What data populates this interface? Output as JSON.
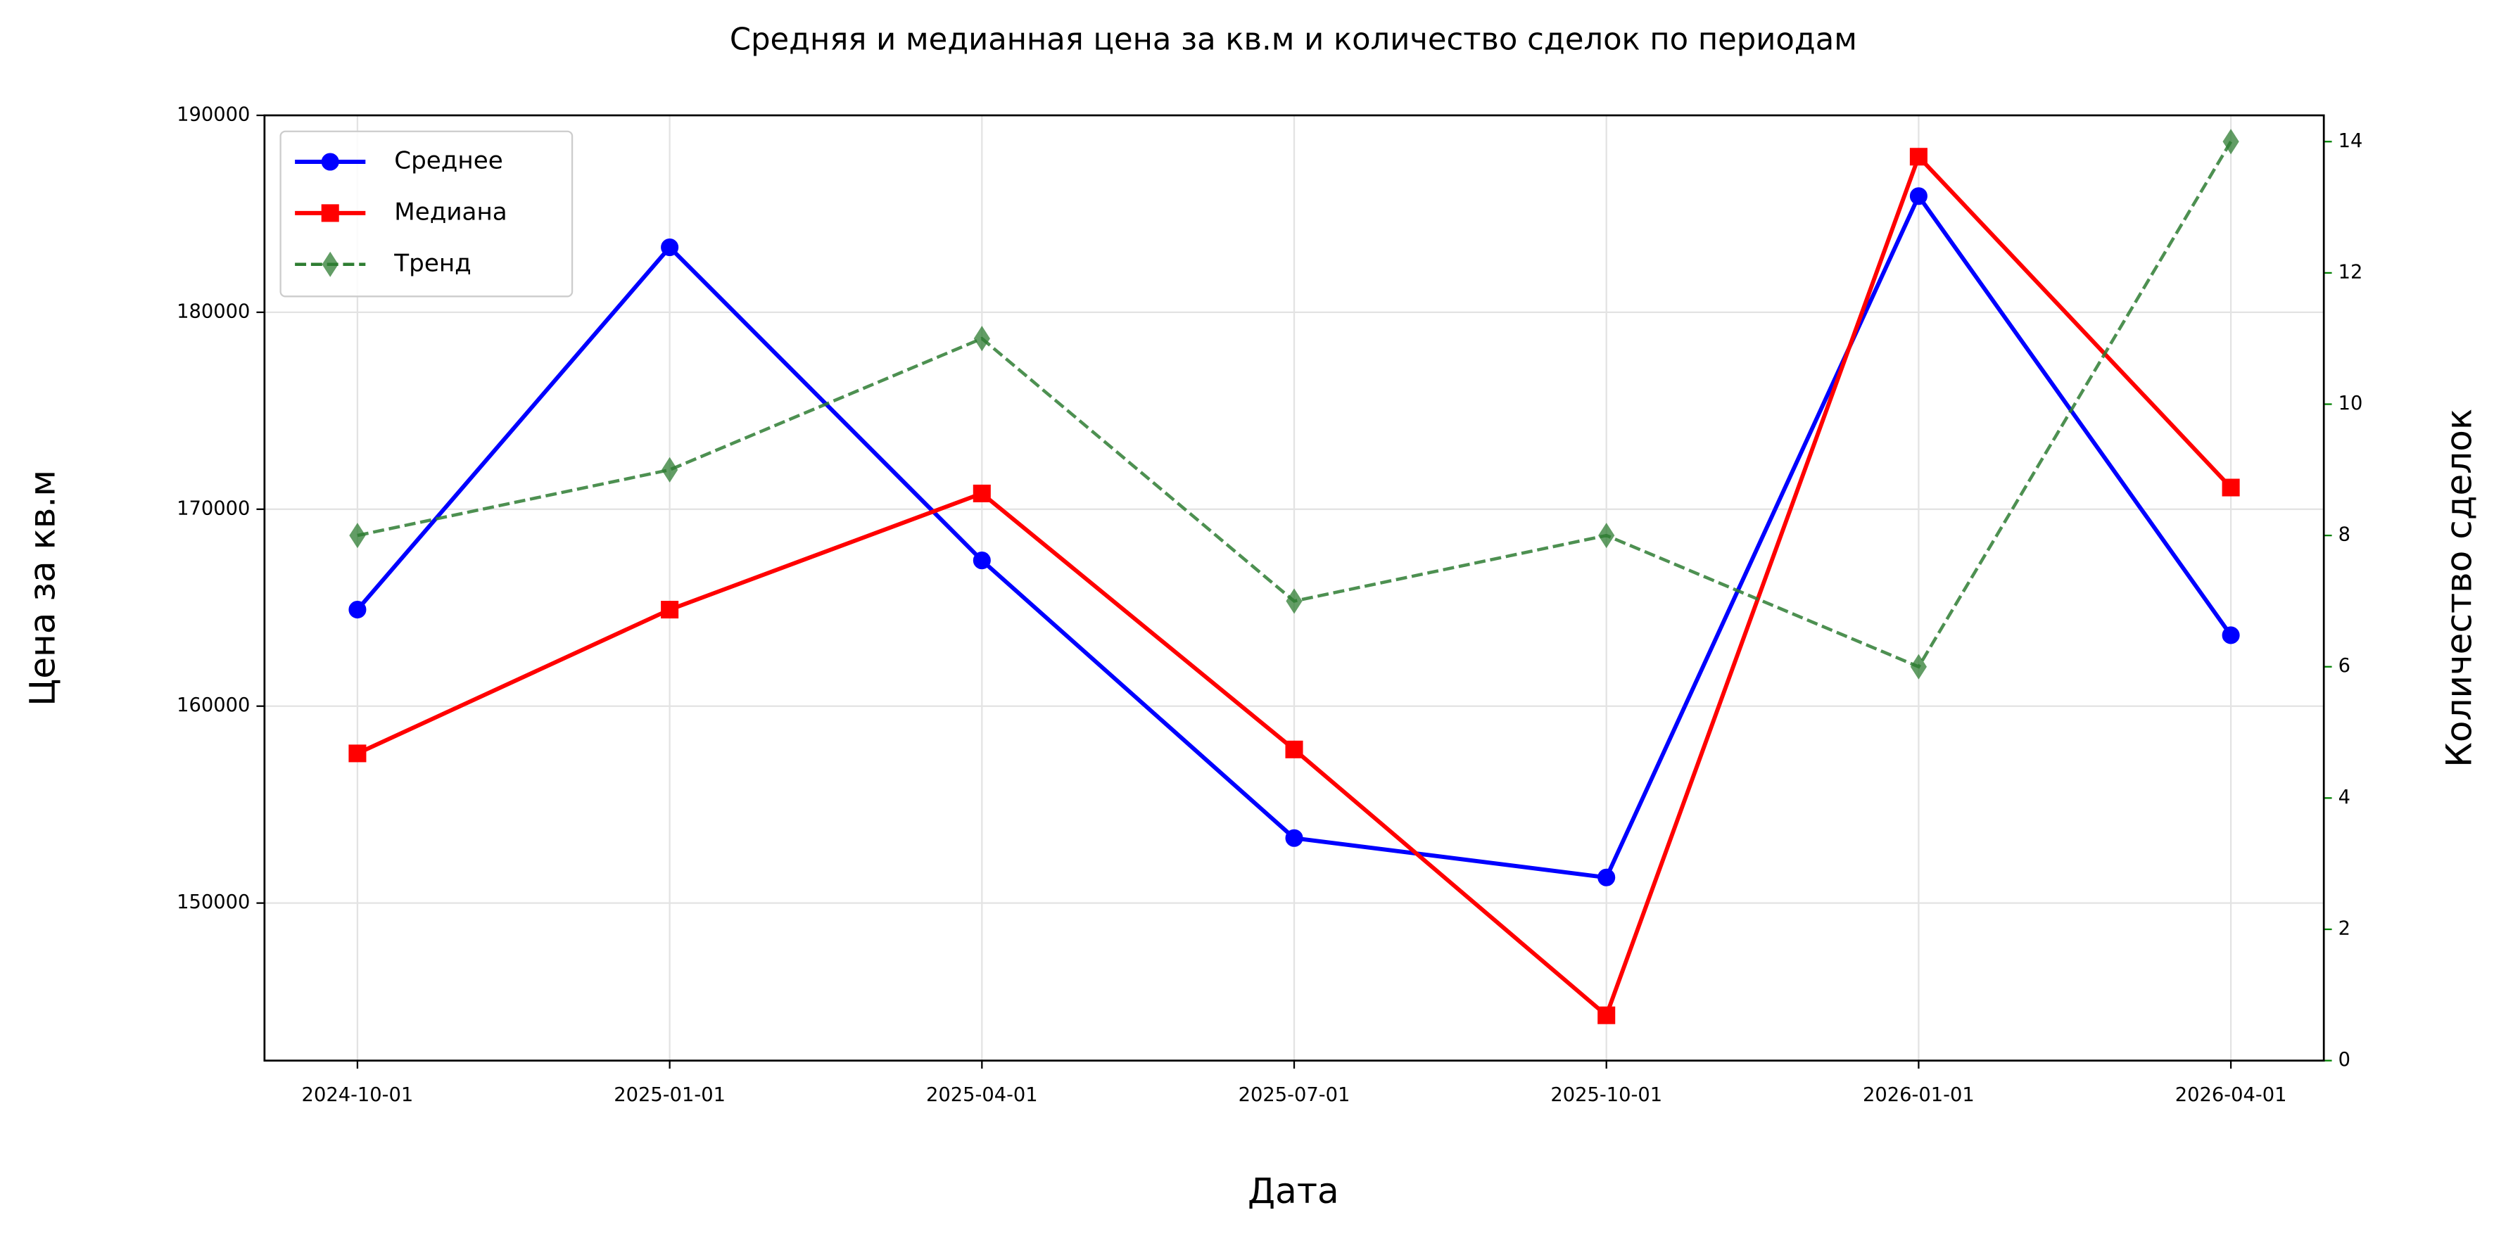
{
  "chart_data": {
    "type": "line",
    "title": "Средняя и медианная цена за кв.м и количество сделок по периодам",
    "xlabel": "Дата",
    "ylabel": "Цена за кв.м",
    "y2label": "Количество сделок",
    "y2color": "#008000",
    "categories": [
      "2024-10-01",
      "2025-01-01",
      "2025-04-01",
      "2025-07-01",
      "2025-10-01",
      "2026-01-01",
      "2026-04-01"
    ],
    "series": [
      {
        "name": "Среднее",
        "color": "#0000ff",
        "marker": "circle",
        "dash": false,
        "values": [
          164900,
          183300,
          167400,
          153300,
          151300,
          185900,
          163600
        ]
      },
      {
        "name": "Медиана",
        "color": "#ff0000",
        "marker": "square",
        "dash": false,
        "values": [
          157600,
          164900,
          170800,
          157800,
          144300,
          187900,
          171100
        ]
      },
      {
        "name": "Тренд",
        "color": "#2e7d32",
        "marker": "diamond",
        "dash": true,
        "axis": "y2",
        "values": [
          8,
          9,
          11,
          7,
          8,
          6,
          14
        ]
      }
    ],
    "ylim": [
      142000,
      190000
    ],
    "yticks": [
      150000,
      160000,
      170000,
      180000,
      190000
    ],
    "y2lim": [
      0,
      14.4
    ],
    "y2ticks": [
      0,
      2,
      4,
      6,
      8,
      10,
      12,
      14
    ],
    "grid": true,
    "legend": "upper-left"
  }
}
